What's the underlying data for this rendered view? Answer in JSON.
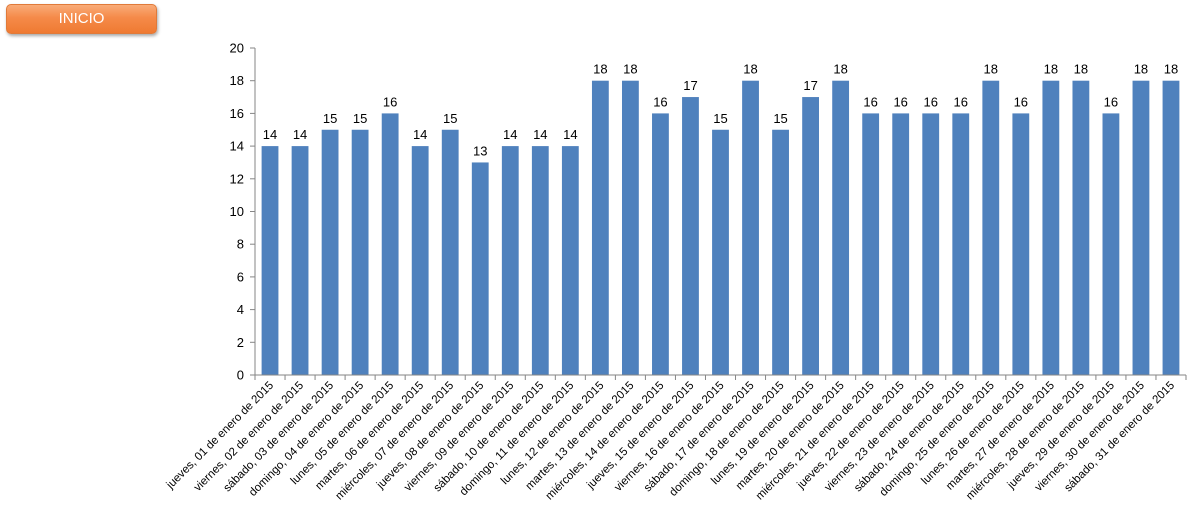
{
  "header": {
    "inicio_label": "INICIO"
  },
  "colors": {
    "bar": "#4f81bd",
    "axis": "#868686",
    "button": "#f58a49"
  },
  "chart_data": {
    "type": "bar",
    "title": "",
    "xlabel": "",
    "ylabel": "",
    "ylim": [
      0,
      20
    ],
    "yticks": [
      0,
      2,
      4,
      6,
      8,
      10,
      12,
      14,
      16,
      18,
      20
    ],
    "grid": false,
    "legend": "none",
    "categories": [
      "jueves, 01 de enero de 2015",
      "viernes, 02 de enero de 2015",
      "sábado, 03 de enero de 2015",
      "domingo, 04 de enero de 2015",
      "lunes, 05 de enero de 2015",
      "martes, 06 de enero de 2015",
      "miércoles, 07 de enero de 2015",
      "jueves, 08 de enero de 2015",
      "viernes, 09 de enero de 2015",
      "sábado, 10 de enero de 2015",
      "domingo, 11 de enero de 2015",
      "lunes, 12 de enero de 2015",
      "martes, 13 de enero de 2015",
      "miércoles, 14 de enero de 2015",
      "jueves, 15 de enero de 2015",
      "viernes, 16 de enero de 2015",
      "sábado, 17 de enero de 2015",
      "domingo, 18 de enero de 2015",
      "lunes, 19 de enero de 2015",
      "martes, 20 de enero de 2015",
      "miércoles, 21 de enero de 2015",
      "jueves, 22 de enero de 2015",
      "viernes, 23 de enero de 2015",
      "sábado, 24 de enero de 2015",
      "domingo, 25 de enero de 2015",
      "lunes, 26 de enero de 2015",
      "martes, 27 de enero de 2015",
      "miércoles, 28 de enero de 2015",
      "jueves, 29 de enero de 2015",
      "viernes, 30 de enero de 2015",
      "sábado, 31 de enero de 2015"
    ],
    "values": [
      14,
      14,
      15,
      15,
      16,
      14,
      15,
      13,
      14,
      14,
      14,
      18,
      18,
      16,
      17,
      15,
      18,
      15,
      17,
      18,
      16,
      16,
      16,
      16,
      18,
      16,
      18,
      18,
      16,
      18,
      18
    ]
  }
}
